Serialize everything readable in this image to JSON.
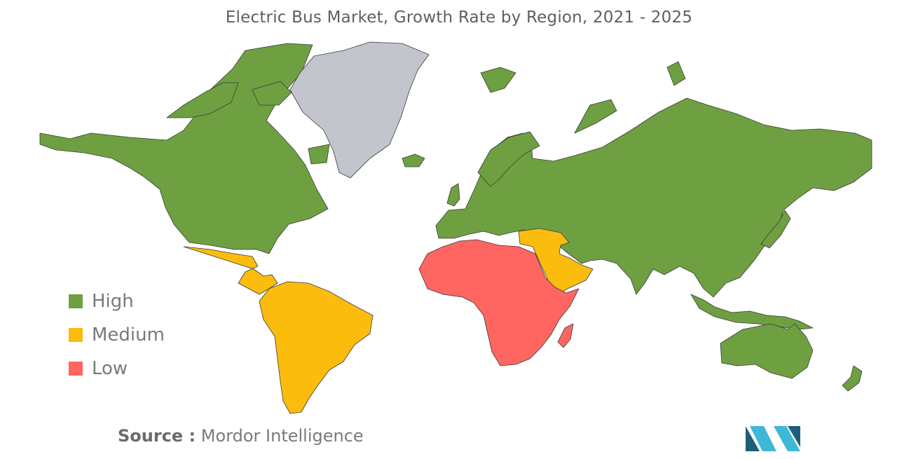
{
  "title": "Electric Bus Market, Growth Rate by Region, 2021 - 2025",
  "colors": {
    "high": "#6ea041",
    "medium": "#fbbc0e",
    "low": "#ff6561",
    "no_data": "#c2c5cb",
    "border": "#3a3a3a",
    "logo_dark": "#1d5f7a",
    "logo_light": "#3fb8d8"
  },
  "legend": [
    {
      "key": "high",
      "label": "High",
      "color": "#6ea041"
    },
    {
      "key": "medium",
      "label": "Medium",
      "color": "#fbbc0e"
    },
    {
      "key": "low",
      "label": "Low",
      "color": "#ff6561"
    }
  ],
  "regions": {
    "north_america": "high",
    "europe": "high",
    "asia_pacific": "high",
    "latin_america": "medium",
    "middle_east": "medium",
    "africa": "low",
    "greenland": "no_data"
  },
  "source": {
    "label": "Source :",
    "text": "Mordor Intelligence"
  },
  "logo_icon": "mordor-intelligence-logo"
}
